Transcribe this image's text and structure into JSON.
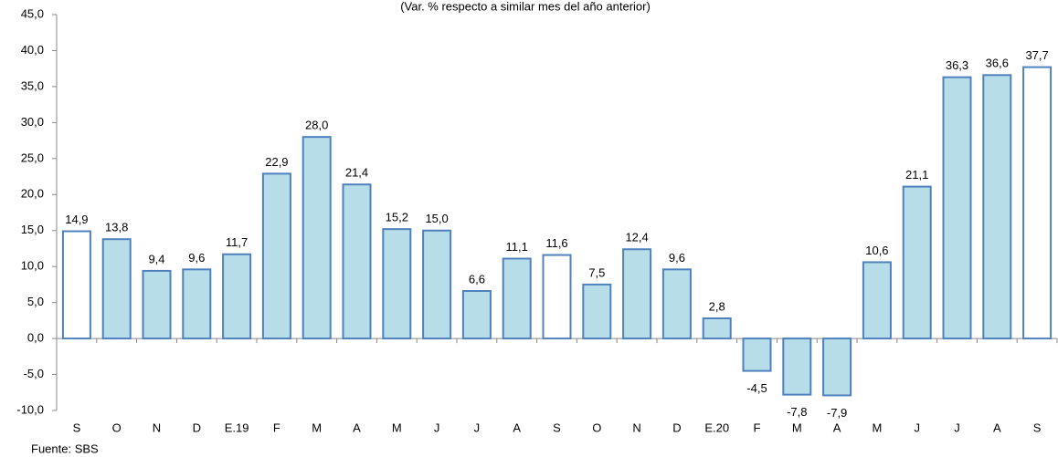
{
  "chart_data": {
    "type": "bar",
    "title": "(Var. % respecto a similar mes del año anterior)",
    "source": "Fuente: SBS",
    "categories": [
      "S",
      "O",
      "N",
      "D",
      "E.19",
      "F",
      "M",
      "A",
      "M",
      "J",
      "J",
      "A",
      "S",
      "O",
      "N",
      "D",
      "E.20",
      "F",
      "M",
      "A",
      "M",
      "J",
      "J",
      "A",
      "S"
    ],
    "values": [
      14.9,
      13.8,
      9.4,
      9.6,
      11.7,
      22.9,
      28.0,
      21.4,
      15.2,
      15.0,
      6.6,
      11.1,
      11.6,
      7.5,
      12.4,
      9.6,
      2.8,
      -4.5,
      -7.8,
      -7.9,
      10.6,
      21.1,
      36.3,
      36.6,
      37.7
    ],
    "value_labels": [
      "14,9",
      "13,8",
      "9,4",
      "9,6",
      "11,7",
      "22,9",
      "28,0",
      "21,4",
      "15,2",
      "15,0",
      "6,6",
      "11,1",
      "11,6",
      "7,5",
      "12,4",
      "9,6",
      "2,8",
      "-4,5",
      "-7,8",
      "-7,9",
      "10,6",
      "21,1",
      "36,3",
      "36,6",
      "37,7"
    ],
    "colors": [
      "#ffffff",
      "#b7dde8",
      "#b7dde8",
      "#b7dde8",
      "#b7dde8",
      "#b7dde8",
      "#b7dde8",
      "#b7dde8",
      "#b7dde8",
      "#b7dde8",
      "#b7dde8",
      "#b7dde8",
      "#ffffff",
      "#b7dde8",
      "#b7dde8",
      "#b7dde8",
      "#b7dde8",
      "#b7dde8",
      "#b7dde8",
      "#b7dde8",
      "#b7dde8",
      "#b7dde8",
      "#b7dde8",
      "#b7dde8",
      "#ffffff"
    ],
    "edge_color": "#4f81bd",
    "ylim": [
      -10,
      45
    ],
    "yticks": [
      {
        "value": -10,
        "label": "-10,0"
      },
      {
        "value": -5,
        "label": "-5,0"
      },
      {
        "value": 0,
        "label": "0,0"
      },
      {
        "value": 5,
        "label": "5,0"
      },
      {
        "value": 10,
        "label": "10,0"
      },
      {
        "value": 15,
        "label": "15,0"
      },
      {
        "value": 20,
        "label": "20,0"
      },
      {
        "value": 25,
        "label": "25,0"
      },
      {
        "value": 30,
        "label": "30,0"
      },
      {
        "value": 35,
        "label": "35,0"
      },
      {
        "value": 40,
        "label": "40,0"
      },
      {
        "value": 45,
        "label": "45,0"
      }
    ]
  }
}
